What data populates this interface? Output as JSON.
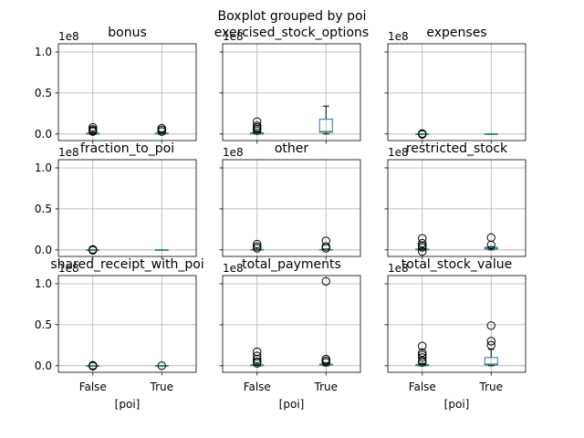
{
  "chart_data": {
    "type": "boxplot",
    "title": "Boxplot grouped by poi",
    "xlabel": "[poi]",
    "categories": [
      "False",
      "True"
    ],
    "ylim": [
      -0.08,
      1.1
    ],
    "y_ticks": [
      0.0,
      0.5,
      1.0
    ],
    "y_tick_labels": [
      "0.0",
      "0.5",
      "1.0"
    ],
    "scale_label": "1e8",
    "grid": true,
    "colors": {
      "box": "#1f77b4",
      "median": "#2ca02c",
      "whisker": "#000000",
      "grid": "#b0b0b0",
      "outlier": "#000000"
    },
    "panels": [
      {
        "name": "bonus",
        "boxes": [
          {
            "category": "False",
            "q1": 0.0,
            "median": 0.0,
            "q3": 0.01,
            "whislo": 0.0,
            "whishi": 0.02,
            "fliers": [
              0.03,
              0.04,
              0.055,
              0.08
            ]
          },
          {
            "category": "True",
            "q1": 0.0,
            "median": 0.005,
            "q3": 0.01,
            "whislo": 0.0,
            "whishi": 0.02,
            "fliers": [
              0.03,
              0.05,
              0.07
            ]
          }
        ]
      },
      {
        "name": "exercised_stock_options",
        "boxes": [
          {
            "category": "False",
            "q1": 0.0,
            "median": 0.01,
            "q3": 0.015,
            "whislo": 0.0,
            "whishi": 0.03,
            "fliers": [
              0.04,
              0.06,
              0.08,
              0.1,
              0.15
            ]
          },
          {
            "category": "True",
            "q1": 0.02,
            "median": 0.03,
            "q3": 0.18,
            "whislo": 0.0,
            "whishi": 0.34,
            "fliers": []
          }
        ]
      },
      {
        "name": "expenses",
        "boxes": [
          {
            "category": "False",
            "q1": 0.0,
            "median": 0.0,
            "q3": 0.0,
            "whislo": 0.0,
            "whishi": 0.0,
            "fliers": [
              0.0,
              -0.005,
              0.005
            ]
          },
          {
            "category": "True",
            "q1": 0.0,
            "median": 0.0,
            "q3": 0.0,
            "whislo": 0.0,
            "whishi": 0.0,
            "fliers": []
          }
        ]
      },
      {
        "name": "fraction_to_poi",
        "boxes": [
          {
            "category": "False",
            "q1": 0.0,
            "median": 0.0,
            "q3": 0.0,
            "whislo": 0.0,
            "whishi": 0.0,
            "fliers": [
              0.0,
              -0.005,
              0.005
            ]
          },
          {
            "category": "True",
            "q1": 0.0,
            "median": 0.0,
            "q3": 0.0,
            "whislo": 0.0,
            "whishi": 0.0,
            "fliers": []
          }
        ]
      },
      {
        "name": "other",
        "boxes": [
          {
            "category": "False",
            "q1": 0.0,
            "median": 0.0,
            "q3": 0.005,
            "whislo": 0.0,
            "whishi": 0.01,
            "fliers": [
              0.02,
              0.04,
              0.07
            ]
          },
          {
            "category": "True",
            "q1": 0.0,
            "median": 0.0,
            "q3": 0.005,
            "whislo": 0.0,
            "whishi": 0.01,
            "fliers": [
              0.02,
              0.04,
              0.11
            ]
          }
        ]
      },
      {
        "name": "restricted_stock",
        "boxes": [
          {
            "category": "False",
            "q1": 0.0,
            "median": 0.005,
            "q3": 0.01,
            "whislo": 0.0,
            "whishi": 0.02,
            "fliers": [
              -0.02,
              0.03,
              0.05,
              0.08,
              0.14
            ]
          },
          {
            "category": "True",
            "q1": 0.01,
            "median": 0.02,
            "q3": 0.03,
            "whislo": 0.0,
            "whishi": 0.04,
            "fliers": [
              0.06,
              0.15
            ]
          }
        ]
      },
      {
        "name": "shared_receipt_with_poi",
        "boxes": [
          {
            "category": "False",
            "q1": 0.0,
            "median": 0.0,
            "q3": 0.0,
            "whislo": 0.0,
            "whishi": 0.0,
            "fliers": [
              0.0,
              -0.005,
              0.005
            ]
          },
          {
            "category": "True",
            "q1": 0.0,
            "median": 0.0,
            "q3": 0.0,
            "whislo": 0.0,
            "whishi": 0.0,
            "fliers": [
              0.0
            ]
          }
        ]
      },
      {
        "name": "total_payments",
        "boxes": [
          {
            "category": "False",
            "q1": 0.0,
            "median": 0.005,
            "q3": 0.01,
            "whislo": 0.0,
            "whishi": 0.02,
            "fliers": [
              0.03,
              0.05,
              0.08,
              0.12,
              0.17
            ]
          },
          {
            "category": "True",
            "q1": 0.01,
            "median": 0.015,
            "q3": 0.02,
            "whislo": 0.0,
            "whishi": 0.03,
            "fliers": [
              0.04,
              0.06,
              0.08,
              1.03
            ]
          }
        ]
      },
      {
        "name": "total_stock_value",
        "boxes": [
          {
            "category": "False",
            "q1": 0.0,
            "median": 0.005,
            "q3": 0.015,
            "whislo": 0.0,
            "whishi": 0.03,
            "fliers": [
              0.04,
              0.06,
              0.1,
              0.13,
              0.16,
              0.24
            ]
          },
          {
            "category": "True",
            "q1": 0.01,
            "median": 0.02,
            "q3": 0.1,
            "whislo": 0.0,
            "whishi": 0.2,
            "fliers": [
              0.25,
              0.3,
              0.49
            ]
          }
        ]
      }
    ]
  }
}
